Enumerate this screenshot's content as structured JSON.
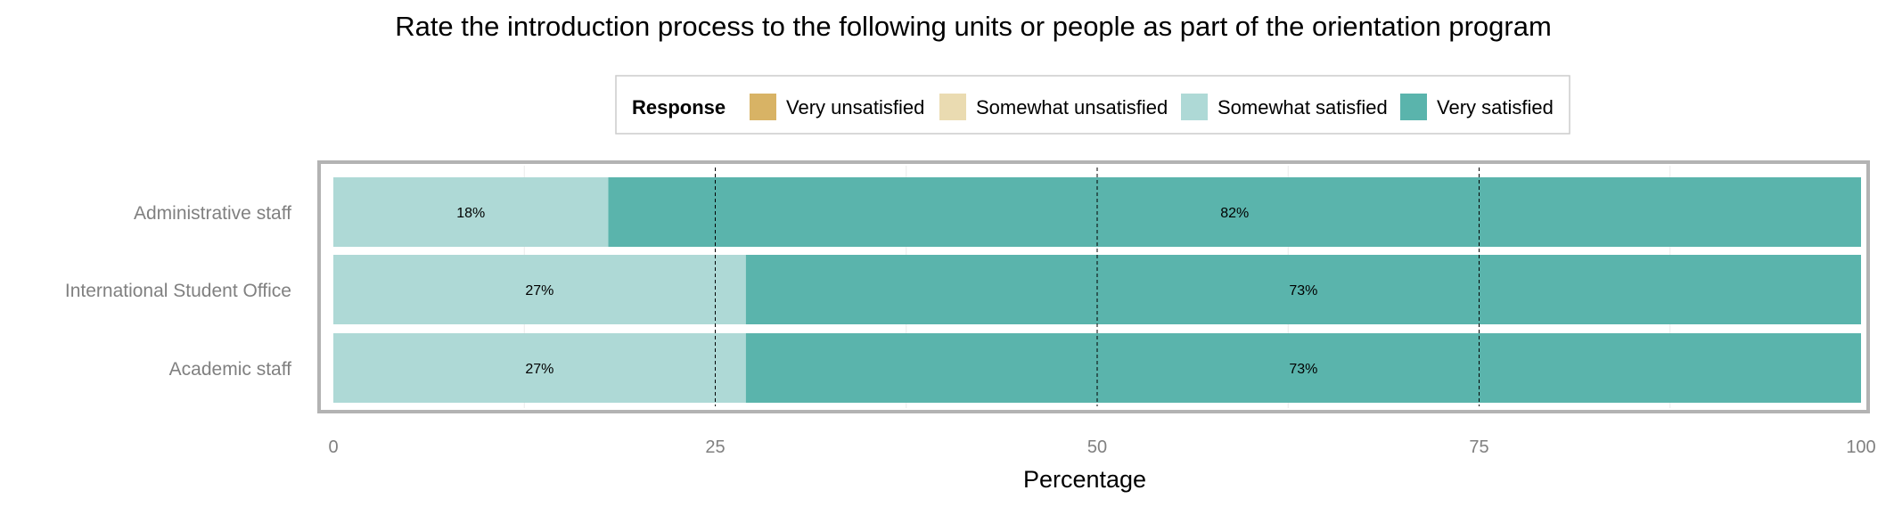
{
  "chart_data": {
    "type": "bar",
    "orientation": "horizontal",
    "stacked": true,
    "title": "Rate the introduction process to the following units or people as part of the orientation program",
    "xlabel": "Percentage",
    "ylabel": "",
    "xlim": [
      0,
      100
    ],
    "x_ticks": [
      "0",
      "25",
      "50",
      "75",
      "100"
    ],
    "dashed_reference_lines": [
      25,
      50,
      75
    ],
    "legend": {
      "title": "Response",
      "placement": "top",
      "entries": [
        {
          "label": "Very unsatisfied",
          "color": "#d8b365"
        },
        {
          "label": "Somewhat unsatisfied",
          "color": "#eadbb1"
        },
        {
          "label": "Somewhat satisfied",
          "color": "#aed9d6"
        },
        {
          "label": "Very satisfied",
          "color": "#5ab4ac"
        }
      ]
    },
    "categories": [
      "Administrative staff",
      "International Student Office",
      "Academic staff"
    ],
    "series": [
      {
        "name": "Very unsatisfied",
        "color": "#d8b365",
        "values": [
          0,
          0,
          0
        ]
      },
      {
        "name": "Somewhat unsatisfied",
        "color": "#eadbb1",
        "values": [
          0,
          0,
          0
        ]
      },
      {
        "name": "Somewhat satisfied",
        "color": "#aed9d6",
        "values": [
          18,
          27,
          27
        ],
        "labels": [
          "18%",
          "27%",
          "27%"
        ]
      },
      {
        "name": "Very satisfied",
        "color": "#5ab4ac",
        "values": [
          82,
          73,
          73
        ],
        "labels": [
          "82%",
          "73%",
          "73%"
        ]
      }
    ]
  }
}
